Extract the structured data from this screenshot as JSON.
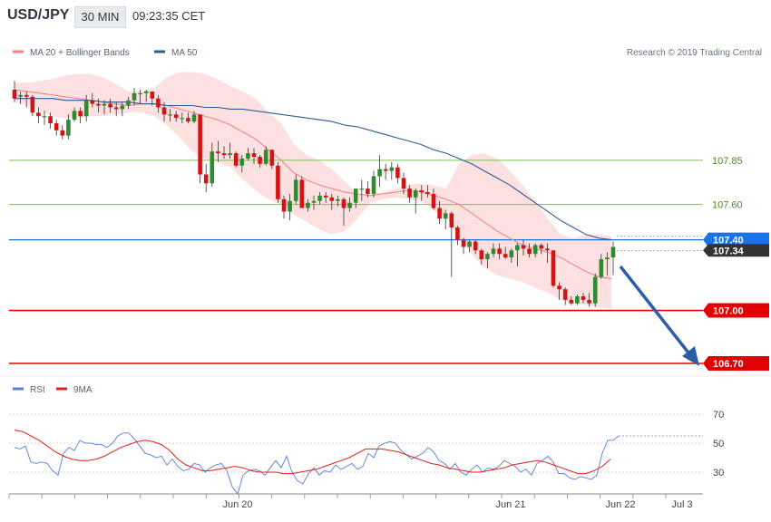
{
  "header": {
    "symbol": "USD/JPY",
    "timeframe": "30 MIN",
    "time": "09:23:35 CET"
  },
  "credit": "Research © 2019 Trading Central",
  "chart_data": [
    {
      "type": "candlestick",
      "legend": [
        {
          "name": "MA 20 + Bollinger Bands",
          "color": "#f08080"
        },
        {
          "name": "MA 50",
          "color": "#2f5a9a"
        }
      ],
      "x_ticks": [
        "Jun 20",
        "Jun 21",
        "Jun 22",
        "Jul 3"
      ],
      "levels": [
        {
          "value": 107.85,
          "label": "107.85",
          "color": "#7cbf5a",
          "style": "line"
        },
        {
          "value": 107.6,
          "label": "107.60",
          "color": "#7cbf5a",
          "style": "line"
        },
        {
          "value": 107.4,
          "label": "107.40",
          "color": "#1a73e8",
          "style": "tag"
        },
        {
          "value": 107.34,
          "label": "107.34",
          "color": "#333333",
          "style": "tag-current"
        },
        {
          "value": 107.0,
          "label": "107.00",
          "color": "#e30000",
          "style": "tag"
        },
        {
          "value": 106.7,
          "label": "106.70",
          "color": "#e30000",
          "style": "tag"
        }
      ],
      "colors": {
        "up": "#2e8b2e",
        "down": "#d41414",
        "bands": "#fde0e0",
        "ma20": "#f08080",
        "ma50": "#2f5a9a"
      },
      "candles": [
        [
          108.25,
          108.3,
          108.18,
          108.2
        ],
        [
          108.21,
          108.24,
          108.17,
          108.22
        ],
        [
          108.22,
          108.24,
          108.15,
          108.21
        ],
        [
          108.21,
          108.22,
          108.1,
          108.12
        ],
        [
          108.12,
          108.15,
          108.06,
          108.1
        ],
        [
          108.1,
          108.13,
          108.05,
          108.1
        ],
        [
          108.1,
          108.12,
          108.03,
          108.06
        ],
        [
          108.06,
          108.08,
          107.99,
          108.02
        ],
        [
          108.02,
          108.05,
          107.97,
          107.99
        ],
        [
          107.99,
          108.11,
          107.97,
          108.08
        ],
        [
          108.08,
          108.15,
          108.07,
          108.13
        ],
        [
          108.13,
          108.15,
          108.06,
          108.1
        ],
        [
          108.1,
          108.22,
          108.07,
          108.19
        ],
        [
          108.19,
          108.23,
          108.15,
          108.17
        ],
        [
          108.17,
          108.2,
          108.12,
          108.16
        ],
        [
          108.16,
          108.19,
          108.11,
          108.17
        ],
        [
          108.17,
          108.2,
          108.12,
          108.15
        ],
        [
          108.15,
          108.18,
          108.1,
          108.14
        ],
        [
          108.14,
          108.18,
          108.1,
          108.16
        ],
        [
          108.16,
          108.21,
          108.14,
          108.19
        ],
        [
          108.19,
          108.26,
          108.16,
          108.23
        ],
        [
          108.23,
          108.25,
          108.17,
          108.23
        ],
        [
          108.23,
          108.25,
          108.18,
          108.24
        ],
        [
          108.24,
          108.24,
          108.16,
          108.2
        ],
        [
          108.2,
          108.22,
          108.12,
          108.15
        ],
        [
          108.15,
          108.18,
          108.07,
          108.11
        ],
        [
          108.11,
          108.14,
          108.07,
          108.11
        ],
        [
          108.11,
          108.13,
          108.07,
          108.09
        ],
        [
          108.09,
          108.12,
          108.06,
          108.09
        ],
        [
          108.09,
          108.12,
          108.06,
          108.07
        ],
        [
          108.07,
          108.13,
          108.06,
          108.11
        ],
        [
          108.11,
          108.11,
          107.72,
          107.77
        ],
        [
          107.77,
          107.83,
          107.67,
          107.72
        ],
        [
          107.72,
          107.95,
          107.7,
          107.9
        ],
        [
          107.9,
          107.96,
          107.84,
          107.89
        ],
        [
          107.89,
          107.93,
          107.86,
          107.88
        ],
        [
          107.88,
          107.95,
          107.86,
          107.89
        ],
        [
          107.89,
          107.9,
          107.81,
          107.82
        ],
        [
          107.82,
          107.88,
          107.78,
          107.86
        ],
        [
          107.86,
          107.92,
          107.85,
          107.89
        ],
        [
          107.89,
          107.92,
          107.83,
          107.87
        ],
        [
          107.87,
          107.88,
          107.81,
          107.83
        ],
        [
          107.83,
          107.93,
          107.82,
          107.91
        ],
        [
          107.91,
          107.91,
          107.8,
          107.82
        ],
        [
          107.82,
          107.84,
          107.61,
          107.63
        ],
        [
          107.63,
          107.65,
          107.52,
          107.56
        ],
        [
          107.56,
          107.66,
          107.51,
          107.62
        ],
        [
          107.62,
          107.77,
          107.6,
          107.74
        ],
        [
          107.74,
          107.76,
          107.58,
          107.58
        ],
        [
          107.58,
          107.63,
          107.56,
          107.61
        ],
        [
          107.61,
          107.65,
          107.57,
          107.62
        ],
        [
          107.62,
          107.67,
          107.6,
          107.65
        ],
        [
          107.65,
          107.67,
          107.61,
          107.64
        ],
        [
          107.64,
          107.66,
          107.57,
          107.62
        ],
        [
          107.62,
          107.65,
          107.59,
          107.63
        ],
        [
          107.63,
          107.64,
          107.48,
          107.58
        ],
        [
          107.58,
          107.64,
          107.56,
          107.61
        ],
        [
          107.61,
          107.69,
          107.58,
          107.69
        ],
        [
          107.69,
          107.74,
          107.62,
          107.69
        ],
        [
          107.69,
          107.73,
          107.64,
          107.66
        ],
        [
          107.66,
          107.79,
          107.64,
          107.76
        ],
        [
          107.76,
          107.88,
          107.7,
          107.8
        ],
        [
          107.8,
          107.83,
          107.74,
          107.79
        ],
        [
          107.79,
          107.84,
          107.74,
          107.81
        ],
        [
          107.81,
          107.83,
          107.72,
          107.75
        ],
        [
          107.75,
          107.78,
          107.66,
          107.69
        ],
        [
          107.69,
          107.71,
          107.61,
          107.64
        ],
        [
          107.64,
          107.69,
          107.55,
          107.68
        ],
        [
          107.68,
          107.71,
          107.62,
          107.67
        ],
        [
          107.67,
          107.71,
          107.64,
          107.66
        ],
        [
          107.66,
          107.69,
          107.57,
          107.58
        ],
        [
          107.58,
          107.62,
          107.49,
          107.52
        ],
        [
          107.52,
          107.57,
          107.46,
          107.55
        ],
        [
          107.55,
          107.56,
          107.19,
          107.47
        ],
        [
          107.47,
          107.48,
          107.37,
          107.4
        ],
        [
          107.4,
          107.41,
          107.32,
          107.36
        ],
        [
          107.36,
          107.4,
          107.33,
          107.39
        ],
        [
          107.39,
          107.4,
          107.32,
          107.34
        ],
        [
          107.34,
          107.35,
          107.26,
          107.29
        ],
        [
          107.29,
          107.33,
          107.24,
          107.32
        ],
        [
          107.32,
          107.38,
          107.3,
          107.35
        ],
        [
          107.35,
          107.38,
          107.29,
          107.32
        ],
        [
          107.32,
          107.36,
          107.29,
          107.3
        ],
        [
          107.3,
          107.35,
          107.27,
          107.34
        ],
        [
          107.34,
          107.38,
          107.25,
          107.37
        ],
        [
          107.37,
          107.4,
          107.31,
          107.35
        ],
        [
          107.35,
          107.38,
          107.3,
          107.32
        ],
        [
          107.32,
          107.38,
          107.3,
          107.37
        ],
        [
          107.37,
          107.38,
          107.32,
          107.35
        ],
        [
          107.35,
          107.38,
          107.27,
          107.34
        ],
        [
          107.34,
          107.34,
          107.13,
          107.14
        ],
        [
          107.14,
          107.16,
          107.06,
          107.12
        ],
        [
          107.12,
          107.13,
          107.03,
          107.06
        ],
        [
          107.06,
          107.08,
          107.03,
          107.04
        ],
        [
          107.04,
          107.09,
          107.03,
          107.08
        ],
        [
          107.08,
          107.1,
          107.04,
          107.06
        ],
        [
          107.06,
          107.1,
          107.02,
          107.04
        ],
        [
          107.04,
          107.21,
          107.02,
          107.19
        ],
        [
          107.19,
          107.32,
          107.18,
          107.29
        ],
        [
          107.29,
          107.33,
          107.2,
          107.3
        ],
        [
          107.3,
          107.39,
          107.2,
          107.36
        ]
      ],
      "ma50": [
        108.2,
        108.2,
        108.2,
        108.2,
        108.19,
        108.19,
        108.19,
        108.18,
        108.18,
        108.18,
        108.17,
        108.17,
        108.16,
        108.16,
        108.16,
        108.15,
        108.15,
        108.14,
        108.14,
        108.13,
        108.12,
        108.11,
        108.1,
        108.09,
        108.08,
        108.07,
        108.05,
        108.04,
        108.02,
        108.0,
        107.98,
        107.96,
        107.94,
        107.91,
        107.89,
        107.86,
        107.83,
        107.79,
        107.75,
        107.71,
        107.66,
        107.61,
        107.56,
        107.51,
        107.47,
        107.43,
        107.41,
        107.4
      ],
      "ma20": [
        108.25,
        108.24,
        108.23,
        108.22,
        108.21,
        108.2,
        108.19,
        108.18,
        108.17,
        108.16,
        108.17,
        108.17,
        108.16,
        108.14,
        108.12,
        108.1,
        108.08,
        108.05,
        108.01,
        107.97,
        107.91,
        107.85,
        107.78,
        107.74,
        107.71,
        107.69,
        107.67,
        107.66,
        107.65,
        107.66,
        107.67,
        107.68,
        107.67,
        107.65,
        107.63,
        107.6,
        107.55,
        107.5,
        107.45,
        107.41,
        107.37,
        107.35,
        107.33,
        107.3,
        107.26,
        107.22,
        107.19,
        107.18
      ],
      "bb_upper": [
        108.29,
        108.29,
        108.3,
        108.31,
        108.33,
        108.34,
        108.34,
        108.32,
        108.28,
        108.24,
        108.24,
        108.26,
        108.32,
        108.35,
        108.35,
        108.34,
        108.31,
        108.27,
        108.24,
        108.2,
        108.12,
        108.06,
        107.94,
        107.88,
        107.85,
        107.8,
        107.73,
        107.66,
        107.66,
        107.67,
        107.69,
        107.71,
        107.72,
        107.71,
        107.69,
        107.83,
        107.88,
        107.89,
        107.86,
        107.79,
        107.71,
        107.62,
        107.52,
        107.43,
        107.41,
        107.43,
        107.43,
        107.42
      ],
      "bb_lower": [
        108.18,
        108.16,
        108.13,
        108.1,
        108.09,
        108.09,
        108.1,
        108.1,
        108.11,
        108.12,
        108.12,
        108.1,
        108.05,
        107.98,
        107.9,
        107.86,
        107.84,
        107.81,
        107.74,
        107.68,
        107.63,
        107.6,
        107.54,
        107.5,
        107.46,
        107.43,
        107.45,
        107.52,
        107.61,
        107.63,
        107.64,
        107.63,
        107.62,
        107.57,
        107.53,
        107.42,
        107.32,
        107.24,
        107.2,
        107.18,
        107.16,
        107.13,
        107.1,
        107.06,
        107.04,
        107.03,
        107.02,
        107.01
      ]
    },
    {
      "type": "line",
      "legend": [
        {
          "name": "RSI",
          "color": "#5a7ed6"
        },
        {
          "name": "9MA",
          "color": "#e02020"
        }
      ],
      "ylim": [
        15,
        80
      ],
      "y_ticks": [
        30,
        50,
        70
      ],
      "rsi": [
        47,
        46,
        48,
        37,
        36,
        37,
        36,
        31,
        28,
        43,
        47,
        45,
        52,
        50,
        50,
        49,
        49,
        47,
        50,
        55,
        57,
        57,
        53,
        48,
        43,
        42,
        40,
        41,
        35,
        39,
        34,
        31,
        32,
        36,
        35,
        30,
        33,
        35,
        36,
        31,
        20,
        15,
        28,
        31,
        32,
        31,
        28,
        33,
        38,
        33,
        41,
        30,
        24,
        22,
        29,
        33,
        28,
        31,
        30,
        35,
        32,
        34,
        36,
        32,
        34,
        43,
        40,
        48,
        50,
        51,
        50,
        45,
        42,
        39,
        41,
        43,
        47,
        44,
        38,
        36,
        32,
        36,
        30,
        28,
        32,
        35,
        30,
        33,
        32,
        34,
        38,
        36,
        34,
        30,
        32,
        28,
        36,
        38,
        41,
        37,
        29,
        29,
        26,
        25,
        27,
        26,
        25,
        28,
        43,
        52,
        52,
        55
      ],
      "ma9": [
        59,
        58,
        55,
        52,
        48,
        44,
        41,
        39,
        38,
        38,
        39,
        41,
        44,
        47,
        49,
        51,
        52,
        51,
        49,
        45,
        39,
        35,
        33,
        31,
        31,
        32,
        33,
        34,
        33,
        31,
        30,
        30,
        30,
        29,
        29,
        30,
        31,
        32,
        34,
        36,
        38,
        40,
        43,
        46,
        46,
        46,
        45,
        44,
        42,
        40,
        38,
        36,
        35,
        33,
        32,
        31,
        30,
        30,
        31,
        32,
        33,
        35,
        36,
        37,
        38,
        37,
        35,
        33,
        31,
        29,
        29,
        31,
        34,
        39
      ]
    }
  ]
}
